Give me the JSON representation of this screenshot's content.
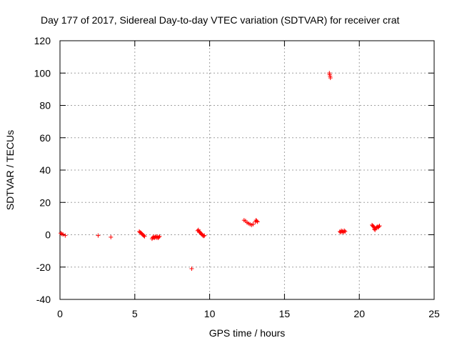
{
  "chart_data": {
    "type": "scatter",
    "title": "Day 177 of 2017, Sidereal Day-to-day VTEC variation (SDTVAR) for receiver crat",
    "xlabel": "GPS time / hours",
    "ylabel": "SDTVAR / TECUs",
    "xlim": [
      0,
      25
    ],
    "ylim": [
      -40,
      120
    ],
    "xticks": [
      0,
      5,
      10,
      15,
      20,
      25
    ],
    "yticks": [
      -40,
      -20,
      0,
      20,
      40,
      60,
      80,
      100,
      120
    ],
    "grid": true,
    "marker": "+",
    "color": "#ff0000",
    "series": [
      {
        "name": "SDTVAR",
        "points": [
          [
            0.05,
            1.0
          ],
          [
            0.12,
            0.5
          ],
          [
            0.2,
            0.2
          ],
          [
            0.35,
            -0.5
          ],
          [
            2.55,
            -0.5
          ],
          [
            3.4,
            -1.5
          ],
          [
            5.3,
            2.0
          ],
          [
            5.35,
            1.5
          ],
          [
            5.4,
            1.2
          ],
          [
            5.45,
            0.8
          ],
          [
            5.5,
            0.3
          ],
          [
            5.55,
            -0.2
          ],
          [
            5.6,
            -0.6
          ],
          [
            5.65,
            -1.0
          ],
          [
            6.15,
            -2.5
          ],
          [
            6.2,
            -1.8
          ],
          [
            6.25,
            -1.2
          ],
          [
            6.3,
            -2.0
          ],
          [
            6.35,
            -1.5
          ],
          [
            6.4,
            -1.0
          ],
          [
            6.45,
            -1.8
          ],
          [
            6.5,
            -1.2
          ],
          [
            6.55,
            -2.0
          ],
          [
            6.6,
            -1.5
          ],
          [
            6.65,
            -1.0
          ],
          [
            8.8,
            -21.0
          ],
          [
            9.2,
            2.5
          ],
          [
            9.25,
            3.0
          ],
          [
            9.3,
            2.0
          ],
          [
            9.35,
            1.5
          ],
          [
            9.4,
            1.0
          ],
          [
            9.45,
            0.5
          ],
          [
            9.5,
            0.0
          ],
          [
            9.55,
            -0.5
          ],
          [
            9.6,
            -0.8
          ],
          [
            9.65,
            -0.5
          ],
          [
            12.3,
            9.0
          ],
          [
            12.4,
            8.5
          ],
          [
            12.5,
            7.5
          ],
          [
            12.6,
            7.0
          ],
          [
            12.7,
            6.5
          ],
          [
            12.8,
            6.0
          ],
          [
            12.9,
            6.5
          ],
          [
            13.05,
            8.0
          ],
          [
            13.1,
            9.0
          ],
          [
            13.15,
            8.5
          ],
          [
            13.2,
            8.0
          ],
          [
            18.0,
            100.0
          ],
          [
            18.02,
            99.0
          ],
          [
            18.05,
            98.0
          ],
          [
            18.07,
            97.0
          ],
          [
            18.7,
            2.0
          ],
          [
            18.75,
            1.5
          ],
          [
            18.8,
            2.5
          ],
          [
            18.85,
            1.8
          ],
          [
            18.9,
            2.2
          ],
          [
            18.95,
            1.5
          ],
          [
            19.0,
            2.5
          ],
          [
            19.05,
            2.0
          ],
          [
            20.85,
            6.0
          ],
          [
            20.9,
            5.5
          ],
          [
            20.95,
            5.0
          ],
          [
            21.0,
            4.5
          ],
          [
            21.0,
            3.5
          ],
          [
            21.05,
            3.0
          ],
          [
            21.1,
            4.0
          ],
          [
            21.15,
            4.5
          ],
          [
            21.2,
            5.0
          ],
          [
            21.25,
            4.5
          ],
          [
            21.3,
            5.0
          ],
          [
            21.35,
            5.5
          ]
        ]
      }
    ]
  }
}
